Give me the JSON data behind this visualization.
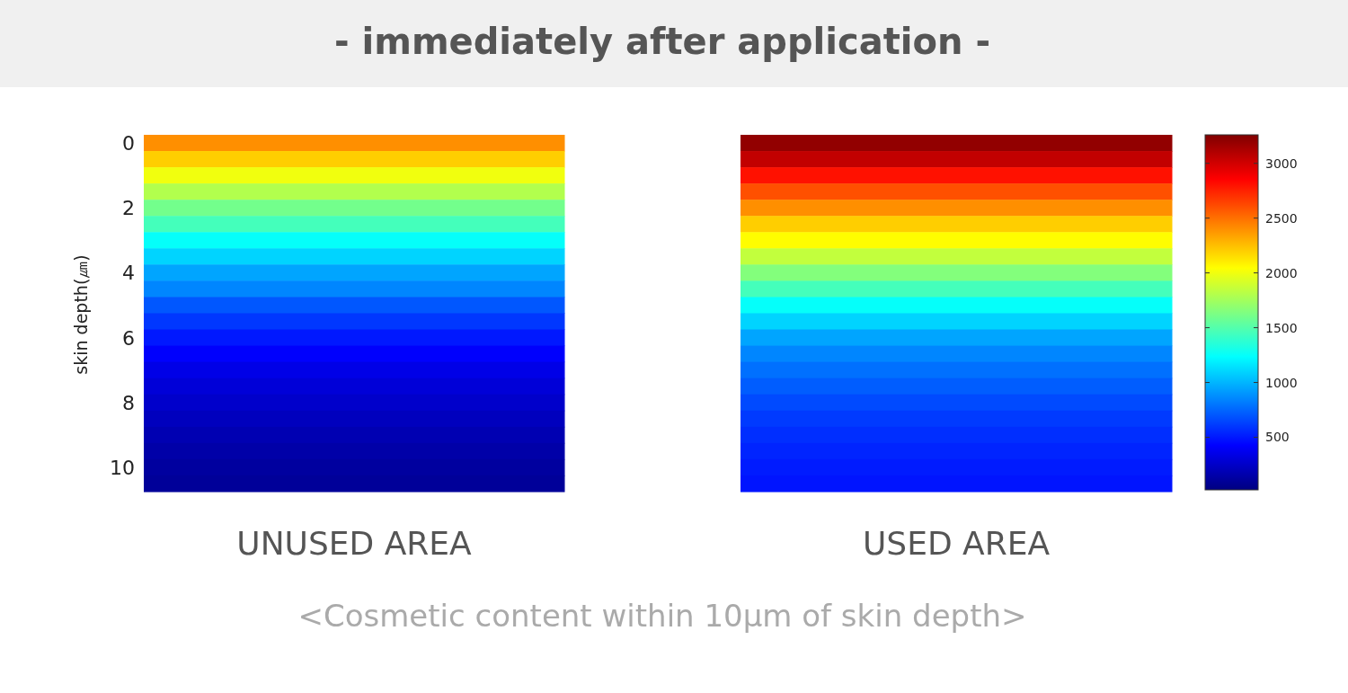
{
  "chart_data": {
    "type": "heatmap",
    "title": "- immediately after application -",
    "ylabel": "skin depth(㎛)",
    "categories": [
      "UNUSED AREA",
      null,
      "USED AREA"
    ],
    "y_categories": [
      "0",
      null,
      null,
      null,
      "2",
      null,
      null,
      null,
      "4",
      null,
      null,
      null,
      "6",
      null,
      null,
      null,
      "8",
      null,
      null,
      null,
      "10",
      null
    ],
    "cells": [
      [
        2400,
        null,
        3200
      ],
      [
        2200,
        null,
        3050
      ],
      [
        2000,
        null,
        2800
      ],
      [
        1800,
        null,
        2600
      ],
      [
        1600,
        null,
        2400
      ],
      [
        1450,
        null,
        2200
      ],
      [
        1250,
        null,
        2050
      ],
      [
        1100,
        null,
        1850
      ],
      [
        950,
        null,
        1650
      ],
      [
        850,
        null,
        1450
      ],
      [
        700,
        null,
        1250
      ],
      [
        600,
        null,
        1100
      ],
      [
        500,
        null,
        950
      ],
      [
        420,
        null,
        850
      ],
      [
        350,
        null,
        780
      ],
      [
        300,
        null,
        720
      ],
      [
        260,
        null,
        660
      ],
      [
        220,
        null,
        610
      ],
      [
        180,
        null,
        570
      ],
      [
        150,
        null,
        540
      ],
      [
        120,
        null,
        510
      ],
      [
        100,
        null,
        490
      ]
    ],
    "clim": [
      20,
      3260
    ],
    "cticks": [
      500,
      1000,
      1500,
      2000,
      2500,
      3000
    ],
    "annotations": [
      "<Cosmetic content within 10µm of skin depth>"
    ]
  }
}
